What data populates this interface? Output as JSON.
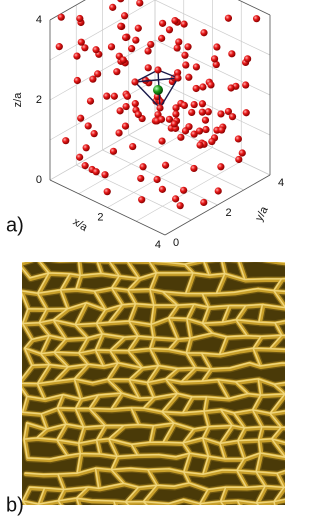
{
  "panels": [
    {
      "label": "a)",
      "axes": {
        "x": {
          "label": "x/a",
          "ticks": [
            2,
            4
          ]
        },
        "y": {
          "label": "y/a",
          "ticks": [
            0,
            2,
            4
          ]
        },
        "z": {
          "label": "z/a",
          "ticks": [
            0,
            2,
            4
          ]
        }
      }
    },
    {
      "label": "b)"
    }
  ]
}
